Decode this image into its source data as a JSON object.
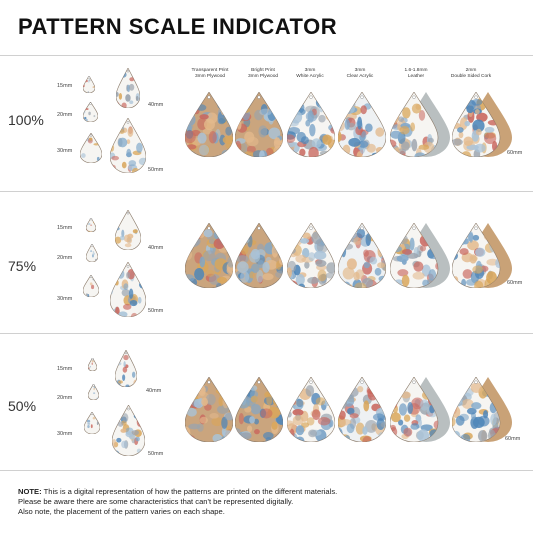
{
  "title": "PATTERN SCALE INDICATOR",
  "columns": [
    {
      "line1": "Transparent Print",
      "line2": "3mm Plywood"
    },
    {
      "line1": "Bright Print",
      "line2": "3mm Plywood"
    },
    {
      "line1": "3mm",
      "line2": "White Acrylic"
    },
    {
      "line1": "3mm",
      "line2": "Clear Acrylic"
    },
    {
      "line1": "1.6-1.8mm",
      "line2": "Leather"
    },
    {
      "line1": "2mm",
      "line2": "Double Sided Cork"
    }
  ],
  "sizes": {
    "s15": "15mm",
    "s20": "20mm",
    "s30": "30mm",
    "s40": "40mm",
    "s50": "50mm",
    "s60": "60mm"
  },
  "rows": [
    {
      "scale": "100%"
    },
    {
      "scale": "75%"
    },
    {
      "scale": "50%"
    }
  ],
  "note": {
    "label": "NOTE:",
    "line1": " This is a digital representation of how the patterns are printed on the different materials.",
    "line2": "Please be aware there are some characteristics that can't be represented digitally.",
    "line3": "Also note, the placement of the pattern varies on each shape."
  },
  "colors": {
    "plywood": "#caa57e",
    "white": "#f6f5f2",
    "clear": "#eef1f3",
    "leather": "#b9bfc0",
    "cork": "#c9a277",
    "blue": "#4f86b8",
    "red": "#c9675e",
    "gold": "#d9a65a",
    "grey": "#9aa3ad"
  }
}
